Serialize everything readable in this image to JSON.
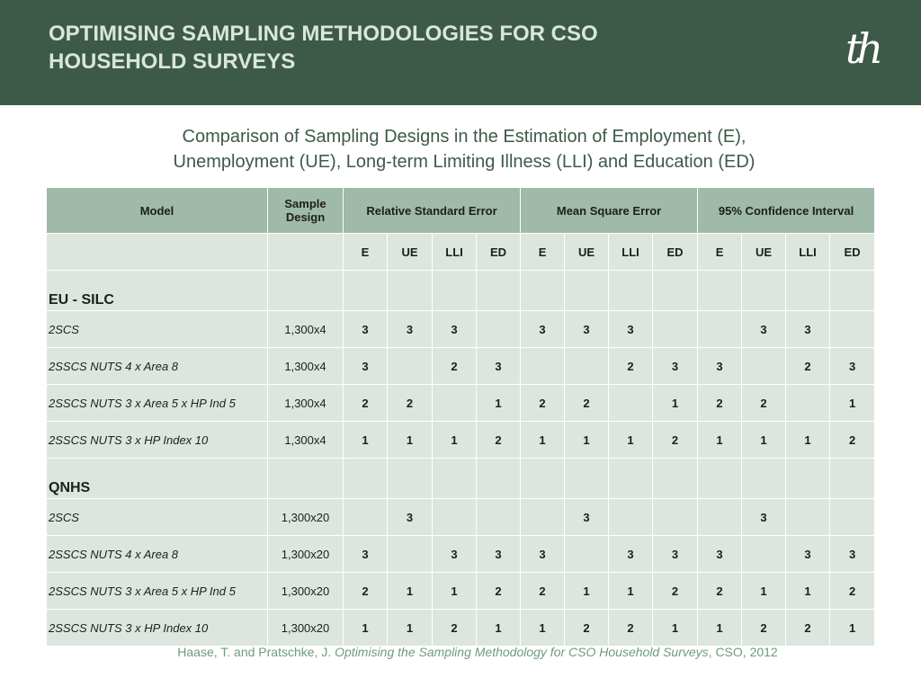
{
  "header": {
    "title": "OPTIMISING SAMPLING METHODOLOGIES FOR CSO HOUSEHOLD SURVEYS",
    "logo": "th"
  },
  "subtitle": {
    "line1": "Comparison of Sampling Designs in the Estimation of Employment (E),",
    "line2": "Unemployment (UE), Long-term Limiting Illness (LLI) and Education (ED)"
  },
  "table": {
    "headers": {
      "model": "Model",
      "sample_design": "Sample Design",
      "groups": [
        "Relative Standard Error",
        "Mean Square Error",
        "95% Confidence Interval"
      ]
    },
    "subheaders": [
      "E",
      "UE",
      "LLI",
      "ED",
      "E",
      "UE",
      "LLI",
      "ED",
      "E",
      "UE",
      "LLI",
      "ED"
    ],
    "sections": [
      {
        "name": "EU - SILC",
        "rows": [
          {
            "model": "2SCS",
            "design": "1,300x4",
            "values": [
              "3",
              "3",
              "3",
              "",
              "3",
              "3",
              "3",
              "",
              "",
              "3",
              "3",
              ""
            ]
          },
          {
            "model": "2SSCS NUTS 4 x Area 8",
            "design": "1,300x4",
            "values": [
              "3",
              "",
              "2",
              "3",
              "",
              "",
              "2",
              "3",
              "3",
              "",
              "2",
              "3"
            ]
          },
          {
            "model": "2SSCS NUTS 3 x Area 5 x HP Ind 5",
            "design": "1,300x4",
            "values": [
              "2",
              "2",
              "",
              "1",
              "2",
              "2",
              "",
              "1",
              "2",
              "2",
              "",
              "1"
            ]
          },
          {
            "model": "2SSCS NUTS 3 x HP Index 10",
            "design": "1,300x4",
            "values": [
              "1",
              "1",
              "1",
              "2",
              "1",
              "1",
              "1",
              "2",
              "1",
              "1",
              "1",
              "2"
            ]
          }
        ]
      },
      {
        "name": "QNHS",
        "rows": [
          {
            "model": "2SCS",
            "design": "1,300x20",
            "values": [
              "",
              "3",
              "",
              "",
              "",
              "3",
              "",
              "",
              "",
              "3",
              "",
              ""
            ]
          },
          {
            "model": "2SSCS NUTS 4 x Area 8",
            "design": "1,300x20",
            "values": [
              "3",
              "",
              "3",
              "3",
              "3",
              "",
              "3",
              "3",
              "3",
              "",
              "3",
              "3"
            ]
          },
          {
            "model": "2SSCS NUTS 3 x Area 5 x HP Ind 5",
            "design": "1,300x20",
            "values": [
              "2",
              "1",
              "1",
              "2",
              "2",
              "1",
              "1",
              "2",
              "2",
              "1",
              "1",
              "2"
            ]
          },
          {
            "model": "2SSCS NUTS 3 x HP Index 10",
            "design": "1,300x20",
            "values": [
              "1",
              "1",
              "2",
              "1",
              "1",
              "2",
              "2",
              "1",
              "1",
              "2",
              "2",
              "1"
            ]
          }
        ]
      }
    ]
  },
  "colors": {
    "header_bg": "#3d5a48",
    "table_header_bg": "#9fbaa8",
    "table_body_bg": "#dce6de",
    "rank_3": "#e0001b",
    "rank_2": "#f5b800",
    "rank_1": "#1e1e1e"
  },
  "footer": {
    "authors": "Haase, T. and Pratschke, J.",
    "title": "Optimising the Sampling Methodology for CSO Household Surveys",
    "source": ", CSO, 2012"
  }
}
